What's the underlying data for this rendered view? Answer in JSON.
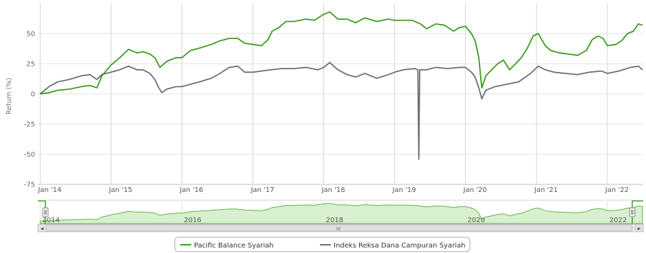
{
  "chart_data": {
    "type": "line",
    "ylabel": "Return (%)",
    "xlabel": "",
    "ylim": [
      -75,
      75
    ],
    "yticks": [
      -75,
      -50,
      -25,
      0,
      25,
      50
    ],
    "xlim": [
      "2013-12-20",
      "2022-07-05"
    ],
    "xticks": [
      {
        "date": "2014-01-01",
        "label": "Jan '14"
      },
      {
        "date": "2015-01-01",
        "label": "Jan '15"
      },
      {
        "date": "2016-01-01",
        "label": "Jan '16"
      },
      {
        "date": "2017-01-01",
        "label": "Jan '17"
      },
      {
        "date": "2018-01-01",
        "label": "Jan '18"
      },
      {
        "date": "2019-01-01",
        "label": "Jan '19"
      },
      {
        "date": "2020-01-01",
        "label": "Jan '20"
      },
      {
        "date": "2021-01-01",
        "label": "Jan '21"
      },
      {
        "date": "2022-01-01",
        "label": "Jan '22"
      }
    ],
    "grid": true,
    "legend_position": "bottom-center",
    "series": [
      {
        "name": "Pacific Balance Syariah",
        "color": "#3a9a1a",
        "points": [
          [
            "2014-01-01",
            0
          ],
          [
            "2014-02-15",
            1
          ],
          [
            "2014-04-01",
            3
          ],
          [
            "2014-06-01",
            4
          ],
          [
            "2014-08-01",
            6
          ],
          [
            "2014-09-15",
            7
          ],
          [
            "2014-10-20",
            5
          ],
          [
            "2014-11-15",
            15
          ],
          [
            "2015-01-01",
            24
          ],
          [
            "2015-02-15",
            30
          ],
          [
            "2015-04-01",
            37
          ],
          [
            "2015-05-15",
            34
          ],
          [
            "2015-06-15",
            35
          ],
          [
            "2015-07-20",
            33
          ],
          [
            "2015-08-15",
            30
          ],
          [
            "2015-09-10",
            22
          ],
          [
            "2015-10-15",
            27
          ],
          [
            "2015-12-01",
            30
          ],
          [
            "2016-01-01",
            30
          ],
          [
            "2016-02-15",
            36
          ],
          [
            "2016-04-01",
            38
          ],
          [
            "2016-06-01",
            41
          ],
          [
            "2016-07-15",
            44
          ],
          [
            "2016-09-01",
            46
          ],
          [
            "2016-10-15",
            46
          ],
          [
            "2016-11-20",
            42
          ],
          [
            "2017-01-01",
            41
          ],
          [
            "2017-02-15",
            40
          ],
          [
            "2017-03-20",
            45
          ],
          [
            "2017-04-10",
            52
          ],
          [
            "2017-05-15",
            55
          ],
          [
            "2017-06-20",
            60
          ],
          [
            "2017-08-01",
            60
          ],
          [
            "2017-10-01",
            62
          ],
          [
            "2017-11-15",
            61
          ],
          [
            "2018-01-01",
            66
          ],
          [
            "2018-02-01",
            68
          ],
          [
            "2018-03-15",
            62
          ],
          [
            "2018-05-01",
            62
          ],
          [
            "2018-06-15",
            59
          ],
          [
            "2018-08-01",
            63
          ],
          [
            "2018-10-01",
            60
          ],
          [
            "2018-12-01",
            62
          ],
          [
            "2019-01-01",
            61
          ],
          [
            "2019-02-15",
            61
          ],
          [
            "2019-04-01",
            61
          ],
          [
            "2019-05-15",
            58
          ],
          [
            "2019-06-15",
            54
          ],
          [
            "2019-08-01",
            58
          ],
          [
            "2019-09-15",
            57
          ],
          [
            "2019-11-01",
            52
          ],
          [
            "2019-12-01",
            55
          ],
          [
            "2020-01-01",
            56
          ],
          [
            "2020-02-01",
            50
          ],
          [
            "2020-02-20",
            44
          ],
          [
            "2020-03-10",
            30
          ],
          [
            "2020-03-25",
            5
          ],
          [
            "2020-04-15",
            15
          ],
          [
            "2020-05-15",
            20
          ],
          [
            "2020-06-15",
            25
          ],
          [
            "2020-07-15",
            28
          ],
          [
            "2020-08-15",
            20
          ],
          [
            "2020-09-15",
            25
          ],
          [
            "2020-10-15",
            30
          ],
          [
            "2020-11-15",
            38
          ],
          [
            "2020-12-15",
            48
          ],
          [
            "2021-01-10",
            50
          ],
          [
            "2021-02-15",
            40
          ],
          [
            "2021-03-15",
            36
          ],
          [
            "2021-05-01",
            34
          ],
          [
            "2021-06-15",
            33
          ],
          [
            "2021-08-01",
            32
          ],
          [
            "2021-09-15",
            36
          ],
          [
            "2021-10-15",
            45
          ],
          [
            "2021-11-15",
            48
          ],
          [
            "2021-12-10",
            46
          ],
          [
            "2022-01-01",
            40
          ],
          [
            "2022-02-15",
            41
          ],
          [
            "2022-03-15",
            44
          ],
          [
            "2022-04-15",
            50
          ],
          [
            "2022-05-15",
            52
          ],
          [
            "2022-06-10",
            58
          ],
          [
            "2022-07-01",
            57
          ]
        ]
      },
      {
        "name": "Indeks Reksa Dana Campuran Syariah",
        "color": "#6b6b78",
        "points": [
          [
            "2014-01-01",
            0
          ],
          [
            "2014-02-15",
            6
          ],
          [
            "2014-04-01",
            10
          ],
          [
            "2014-06-01",
            12
          ],
          [
            "2014-08-01",
            15
          ],
          [
            "2014-09-15",
            16
          ],
          [
            "2014-10-20",
            12
          ],
          [
            "2014-11-15",
            16
          ],
          [
            "2015-01-01",
            18
          ],
          [
            "2015-02-15",
            20
          ],
          [
            "2015-04-01",
            23
          ],
          [
            "2015-05-15",
            20
          ],
          [
            "2015-06-15",
            20
          ],
          [
            "2015-07-20",
            17
          ],
          [
            "2015-08-15",
            12
          ],
          [
            "2015-09-01",
            6
          ],
          [
            "2015-09-20",
            1
          ],
          [
            "2015-10-15",
            4
          ],
          [
            "2015-12-01",
            6
          ],
          [
            "2016-01-01",
            6
          ],
          [
            "2016-02-15",
            8
          ],
          [
            "2016-04-01",
            10
          ],
          [
            "2016-06-01",
            13
          ],
          [
            "2016-07-15",
            17
          ],
          [
            "2016-09-01",
            22
          ],
          [
            "2016-10-15",
            23
          ],
          [
            "2016-11-20",
            18
          ],
          [
            "2017-01-01",
            18
          ],
          [
            "2017-02-15",
            19
          ],
          [
            "2017-04-01",
            20
          ],
          [
            "2017-06-01",
            21
          ],
          [
            "2017-08-01",
            21
          ],
          [
            "2017-10-01",
            22
          ],
          [
            "2017-12-01",
            20
          ],
          [
            "2018-01-01",
            22
          ],
          [
            "2018-02-01",
            26
          ],
          [
            "2018-03-15",
            20
          ],
          [
            "2018-05-01",
            16
          ],
          [
            "2018-06-15",
            14
          ],
          [
            "2018-08-01",
            17
          ],
          [
            "2018-10-01",
            13
          ],
          [
            "2018-12-01",
            16
          ],
          [
            "2019-01-01",
            18
          ],
          [
            "2019-02-15",
            20
          ],
          [
            "2019-04-15",
            21
          ],
          [
            "2019-05-01",
            20
          ],
          [
            "2019-05-06",
            -54
          ],
          [
            "2019-05-10",
            20
          ],
          [
            "2019-06-15",
            20
          ],
          [
            "2019-08-01",
            22
          ],
          [
            "2019-10-01",
            21
          ],
          [
            "2019-12-01",
            22
          ],
          [
            "2020-01-01",
            22
          ],
          [
            "2020-02-01",
            18
          ],
          [
            "2020-02-20",
            14
          ],
          [
            "2020-03-10",
            5
          ],
          [
            "2020-03-25",
            -4
          ],
          [
            "2020-04-15",
            3
          ],
          [
            "2020-06-01",
            6
          ],
          [
            "2020-08-01",
            8
          ],
          [
            "2020-10-01",
            10
          ],
          [
            "2020-12-01",
            17
          ],
          [
            "2021-01-10",
            23
          ],
          [
            "2021-02-15",
            20
          ],
          [
            "2021-04-01",
            18
          ],
          [
            "2021-06-01",
            17
          ],
          [
            "2021-08-01",
            16
          ],
          [
            "2021-10-01",
            18
          ],
          [
            "2021-12-01",
            19
          ],
          [
            "2022-01-01",
            17
          ],
          [
            "2022-03-01",
            19
          ],
          [
            "2022-05-01",
            22
          ],
          [
            "2022-06-10",
            23
          ],
          [
            "2022-07-01",
            20
          ]
        ]
      }
    ]
  },
  "navigator": {
    "year_labels": [
      "2014",
      "2016",
      "2018",
      "2020",
      "2022"
    ],
    "scrollbar_grip": "III",
    "left_arrow": "◂",
    "right_arrow": "▸"
  }
}
